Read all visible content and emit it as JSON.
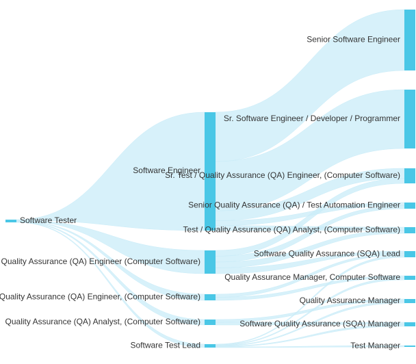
{
  "chart_data": {
    "type": "sankey",
    "colors": {
      "node": "#4ac7e6",
      "link": "#c9ecf8",
      "text": "#333333"
    },
    "nodes": [
      {
        "id": "st",
        "label": "Software Tester",
        "column": 0
      },
      {
        "id": "se",
        "label": "Software Engineer",
        "column": 1
      },
      {
        "id": "qae",
        "label": "Quality Assurance (QA) Engineer (Computer Software)",
        "column": 1
      },
      {
        "id": "qae2",
        "label": "Quality Assurance (QA) Engineer, (Computer Software)",
        "column": 1
      },
      {
        "id": "qaa",
        "label": "Quality Assurance (QA) Analyst, (Computer Software)",
        "column": 1
      },
      {
        "id": "stl",
        "label": "Software Test Lead",
        "column": 1
      },
      {
        "id": "sse",
        "label": "Senior Software Engineer",
        "column": 2
      },
      {
        "id": "ssed",
        "label": "Sr. Software Engineer / Developer / Programmer",
        "column": 2
      },
      {
        "id": "srqa",
        "label": "Sr. Test / Quality Assurance (QA) Engineer, (Computer Software)",
        "column": 2
      },
      {
        "id": "sqata",
        "label": "Senior Quality Assurance (QA) / Test Automation Engineer",
        "column": 2
      },
      {
        "id": "tqaa",
        "label": "Test / Quality Assurance (QA) Analyst, (Computer Software)",
        "column": 2
      },
      {
        "id": "sqal",
        "label": "Software Quality Assurance (SQA) Lead",
        "column": 2
      },
      {
        "id": "qamcs",
        "label": "Quality Assurance Manager, Computer Software",
        "column": 2
      },
      {
        "id": "qam",
        "label": "Quality Assurance Manager",
        "column": 2
      },
      {
        "id": "sqam",
        "label": "Software Quality Assurance (SQA) Manager",
        "column": 2
      },
      {
        "id": "tm",
        "label": "Test Manager",
        "column": 2
      }
    ],
    "links": [
      {
        "source": "st",
        "target": "se",
        "value": 1
      },
      {
        "source": "st",
        "target": "qae",
        "value": 1
      },
      {
        "source": "st",
        "target": "qae2",
        "value": 1
      },
      {
        "source": "st",
        "target": "qaa",
        "value": 1
      },
      {
        "source": "st",
        "target": "stl",
        "value": 1
      },
      {
        "source": "se",
        "target": "sse",
        "value": 10
      },
      {
        "source": "se",
        "target": "ssed",
        "value": 10
      },
      {
        "source": "se",
        "target": "srqa",
        "value": 2
      },
      {
        "source": "se",
        "target": "sqata",
        "value": 1
      },
      {
        "source": "se",
        "target": "tqaa",
        "value": 1
      },
      {
        "source": "qae",
        "target": "srqa",
        "value": 1
      },
      {
        "source": "qae",
        "target": "sqata",
        "value": 1
      },
      {
        "source": "qae",
        "target": "tqaa",
        "value": 1
      },
      {
        "source": "qae",
        "target": "sqal",
        "value": 1
      },
      {
        "source": "qae2",
        "target": "sqal",
        "value": 1
      },
      {
        "source": "qae2",
        "target": "qamcs",
        "value": 1
      },
      {
        "source": "qaa",
        "target": "qam",
        "value": 1
      },
      {
        "source": "qaa",
        "target": "sqam",
        "value": 1
      },
      {
        "source": "stl",
        "target": "sqal",
        "value": 1
      },
      {
        "source": "stl",
        "target": "qamcs",
        "value": 1
      },
      {
        "source": "stl",
        "target": "qam",
        "value": 1
      },
      {
        "source": "stl",
        "target": "sqam",
        "value": 1
      },
      {
        "source": "stl",
        "target": "tm",
        "value": 1
      }
    ]
  }
}
